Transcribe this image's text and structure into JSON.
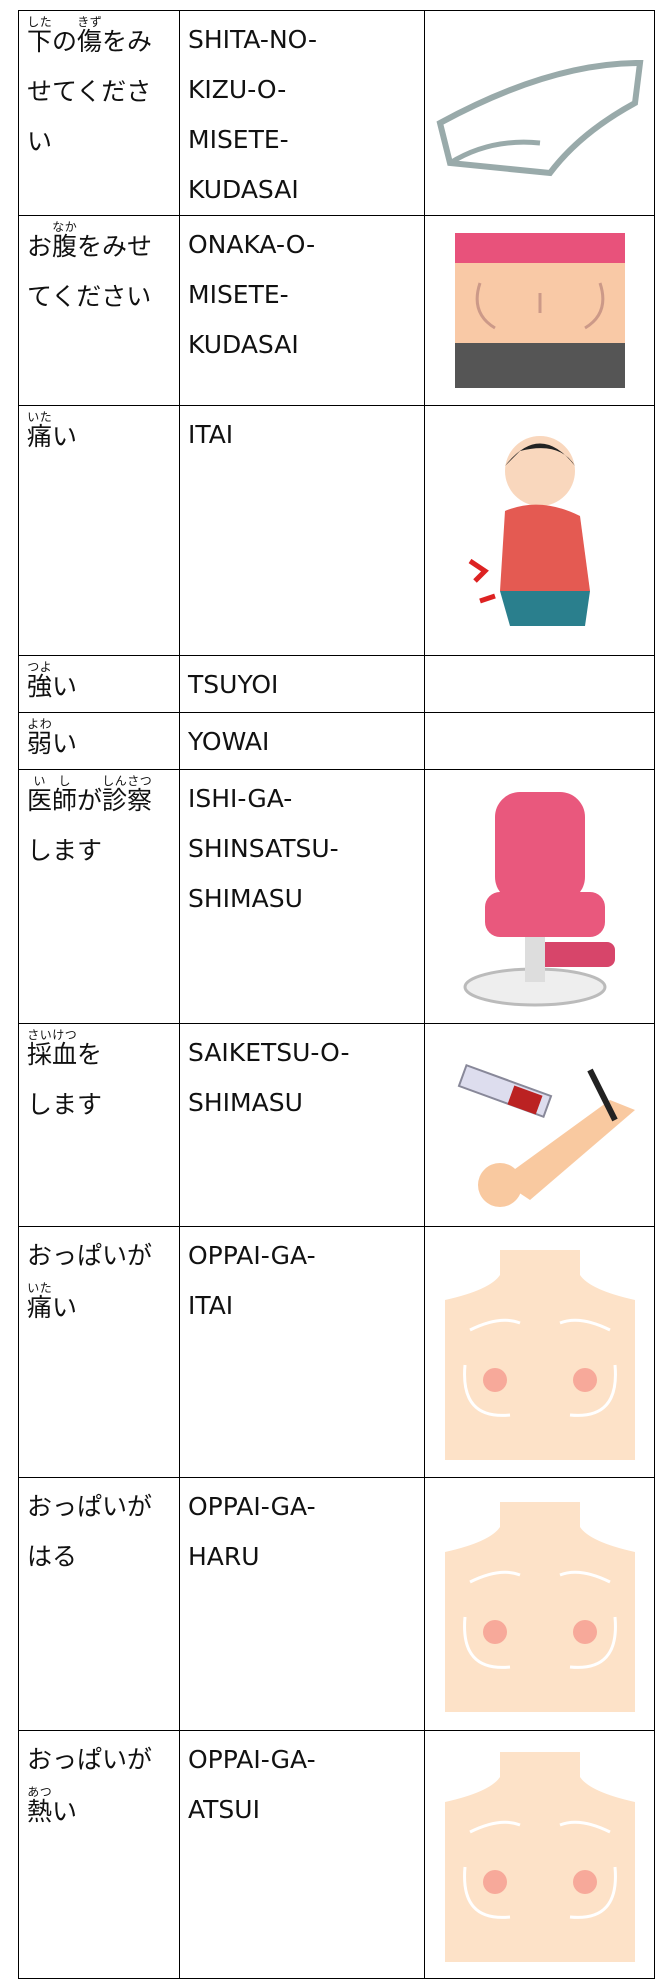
{
  "table": {
    "rows": [
      {
        "japanese": [
          [
            {
              "base": "下",
              "ruby": "した"
            },
            "の",
            {
              "base": "傷",
              "ruby": "きず"
            },
            "をみ"
          ],
          [
            "せてくださ"
          ],
          [
            "い"
          ]
        ],
        "romaji": [
          "SHITA-NO-",
          "KIZU-O-",
          "MISETE-",
          "KUDASAI"
        ]
      },
      {
        "japanese": [
          [
            "お",
            {
              "base": "腹",
              "ruby": "なか"
            },
            "をみせ"
          ],
          [
            "てください"
          ]
        ],
        "romaji": [
          "ONAKA-O-",
          "MISETE-",
          "KUDASAI"
        ]
      },
      {
        "japanese": [
          [
            {
              "base": "痛",
              "ruby": "いた"
            },
            "い"
          ]
        ],
        "romaji": [
          "ITAI"
        ]
      },
      {
        "japanese": [
          [
            {
              "base": "強",
              "ruby": "つよ"
            },
            "い"
          ]
        ],
        "romaji": [
          "TSUYOI"
        ]
      },
      {
        "japanese": [
          [
            {
              "base": "弱",
              "ruby": "よわ"
            },
            "い"
          ]
        ],
        "romaji": [
          "YOWAI"
        ]
      },
      {
        "japanese": [
          [
            {
              "base": "医師",
              "ruby": "いし"
            },
            "が",
            {
              "base": "診察",
              "ruby": "しんさつ"
            }
          ],
          [
            "します"
          ]
        ],
        "romaji": [
          "ISHI-GA-",
          "SHINSATSU-",
          "SHIMASU"
        ]
      },
      {
        "japanese": [
          [
            {
              "base": "採血",
              "ruby": "さいけつ"
            },
            "を"
          ],
          [
            "します"
          ]
        ],
        "romaji": [
          "SAIKETSU-O-",
          "SHIMASU"
        ]
      },
      {
        "japanese": [
          [
            "おっぱいが"
          ],
          [
            {
              "base": "痛",
              "ruby": "いた"
            },
            "い"
          ]
        ],
        "romaji": [
          "OPPAI-GA-",
          "ITAI"
        ]
      },
      {
        "japanese": [
          [
            "おっぱいが"
          ],
          [
            "はる"
          ]
        ],
        "romaji": [
          "OPPAI-GA-",
          "HARU"
        ]
      },
      {
        "japanese": [
          [
            "おっぱいが"
          ],
          [
            {
              "base": "熱",
              "ruby": "あつ"
            },
            "い"
          ]
        ],
        "romaji": [
          "OPPAI-GA-",
          "ATSUI"
        ]
      }
    ]
  }
}
